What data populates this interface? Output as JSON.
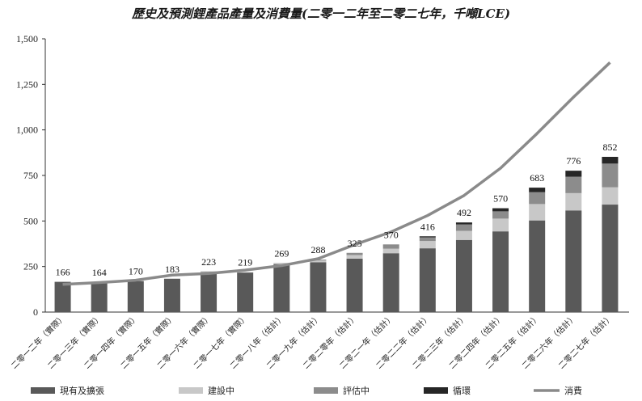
{
  "chart_data": {
    "type": "bar",
    "title": "歷史及預測鋰產品產量及消費量(二零一二年至二零二七年，千噸LCE)",
    "categories": [
      "二零一二年（實際）",
      "二零一三年（實際）",
      "二零一四年（實際）",
      "二零一五年（實際）",
      "二零一六年（實際）",
      "二零一七年（實際）",
      "二零一八年（估計）",
      "二零一九年（估計）",
      "二零二零年（估計）",
      "二零二一年（估計）",
      "二零二二年（估計）",
      "二零二三年（估計）",
      "二零二四年（估計）",
      "二零二五年（估計）",
      "二零二六年（估計）",
      "二零二七年（估計）"
    ],
    "stacked": true,
    "series": [
      {
        "name": "現有及擴張",
        "color": "#595959",
        "values": [
          166,
          164,
          170,
          183,
          216,
          217,
          262,
          273,
          293,
          323,
          350,
          396,
          443,
          503,
          558,
          590
        ]
      },
      {
        "name": "建設中",
        "color": "#c8c8c8",
        "values": [
          0,
          0,
          0,
          0,
          4,
          2,
          5,
          10,
          20,
          25,
          40,
          50,
          70,
          90,
          95,
          95
        ]
      },
      {
        "name": "評估中",
        "color": "#8c8c8c",
        "values": [
          0,
          0,
          0,
          0,
          3,
          0,
          2,
          5,
          12,
          20,
          20,
          35,
          40,
          65,
          90,
          130
        ]
      },
      {
        "name": "循環",
        "color": "#262626",
        "values": [
          0,
          0,
          0,
          0,
          0,
          0,
          0,
          0,
          0,
          2,
          6,
          11,
          17,
          25,
          33,
          37
        ]
      }
    ],
    "totals": [
      166,
      164,
      170,
      183,
      223,
      219,
      269,
      288,
      325,
      370,
      416,
      492,
      570,
      683,
      776,
      852
    ],
    "line": {
      "name": "消費",
      "color": "#8a8a8a",
      "values": [
        152,
        162,
        175,
        203,
        212,
        230,
        255,
        293,
        370,
        440,
        530,
        640,
        790,
        980,
        1180,
        1370
      ]
    },
    "ylim": [
      0,
      1500
    ],
    "yticks": [
      "0",
      "250",
      "500",
      "750",
      "1,000",
      "1,250",
      "1,500"
    ],
    "ytick_values": [
      0,
      250,
      500,
      750,
      1000,
      1250,
      1500
    ],
    "legend_position": "bottom",
    "grid": false
  }
}
